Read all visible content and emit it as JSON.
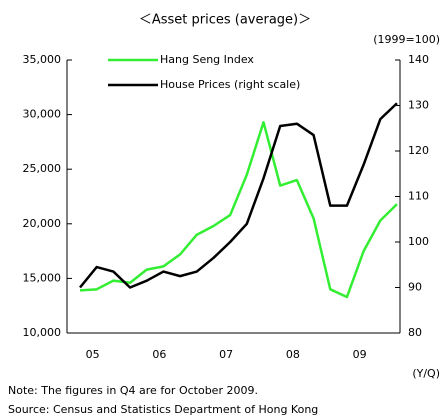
{
  "chart_data": {
    "type": "line",
    "title": "＜Asset prices (average)＞",
    "y2_unit": "(1999=100)",
    "x_unit": "(Y/Q)",
    "note": "Note: The figures in Q4 are for October 2009.",
    "source": "Source: Census and Statistics Department of Hong Kong",
    "categories": [
      null,
      "05",
      null,
      null,
      null,
      "06",
      null,
      null,
      null,
      "07",
      null,
      null,
      null,
      "08",
      null,
      null,
      null,
      "09",
      null,
      null
    ],
    "series": [
      {
        "name": "Hang Seng Index",
        "color": "#33ee33",
        "values": [
          13900,
          14000,
          14800,
          14600,
          15800,
          16100,
          17200,
          19000,
          19800,
          20800,
          24500,
          29300,
          23500,
          24000,
          20500,
          14000,
          13300,
          17500,
          20300,
          21800
        ]
      },
      {
        "name": "House Prices (right scale)",
        "color": "#000000",
        "axis": "y2",
        "values": [
          90,
          94.5,
          93.5,
          90,
          91.5,
          93.5,
          92.5,
          93.5,
          96.5,
          100,
          104,
          114,
          125.5,
          126,
          123.5,
          108,
          108,
          117,
          127,
          130.5
        ]
      }
    ],
    "ylim": [
      10000,
      35000
    ],
    "yticks": [
      {
        "value": 10000,
        "label": "10,000"
      },
      {
        "value": 15000,
        "label": "15,000"
      },
      {
        "value": 20000,
        "label": "20,000"
      },
      {
        "value": 25000,
        "label": "25,000"
      },
      {
        "value": 30000,
        "label": "30,000"
      },
      {
        "value": 35000,
        "label": "35,000"
      }
    ],
    "y2lim": [
      80,
      140
    ],
    "y2ticks": [
      80,
      90,
      100,
      110,
      120,
      130,
      140
    ],
    "legend": "upper left"
  }
}
